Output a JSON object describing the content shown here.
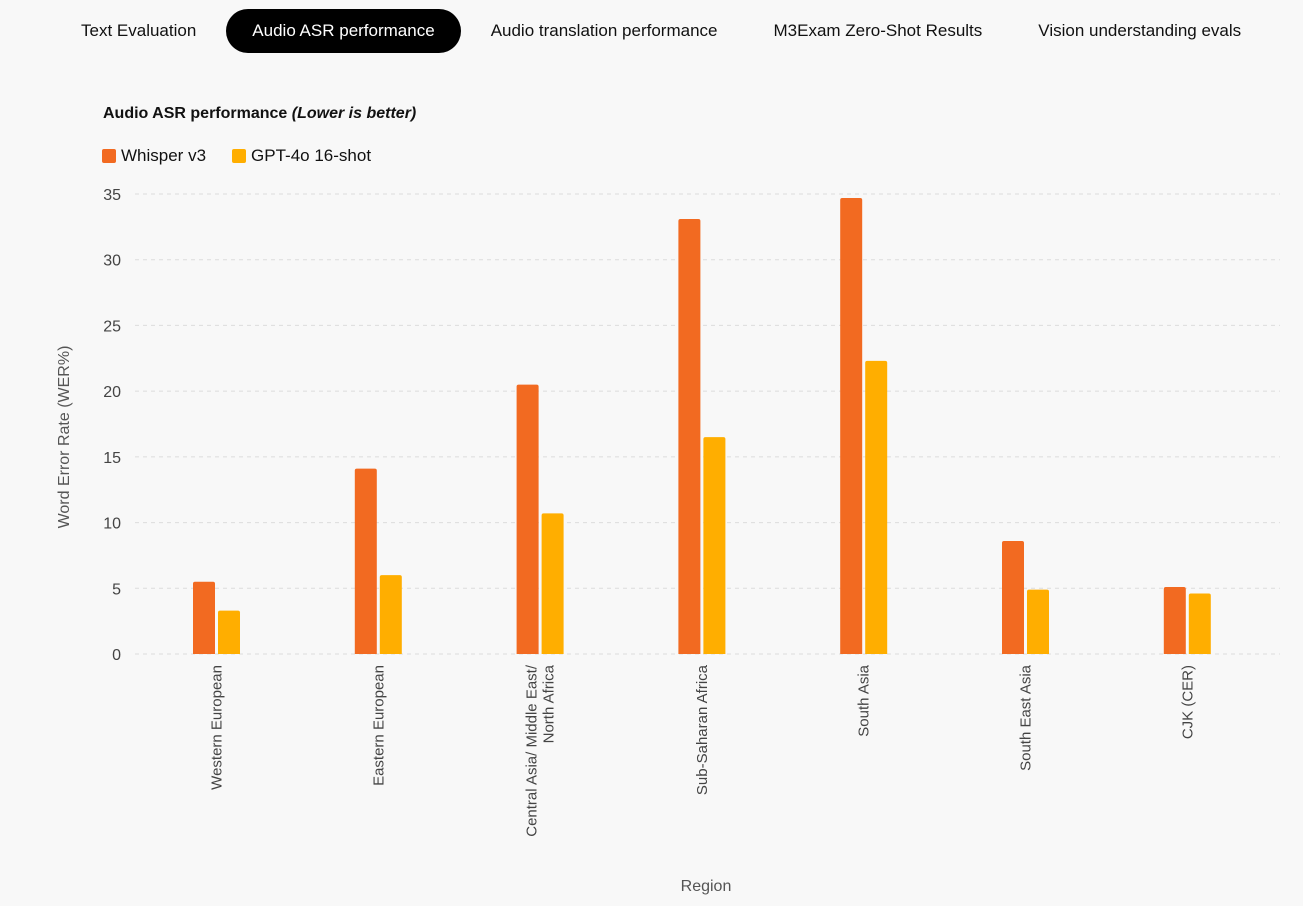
{
  "tabs": [
    {
      "label": "Text Evaluation",
      "active": false
    },
    {
      "label": "Audio ASR performance",
      "active": true
    },
    {
      "label": "Audio translation performance",
      "active": false
    },
    {
      "label": "M3Exam Zero-Shot Results",
      "active": false
    },
    {
      "label": "Vision understanding evals",
      "active": false
    }
  ],
  "chart_data": {
    "type": "bar",
    "title": "Audio ASR performance",
    "subtitle": "(Lower is better)",
    "xlabel": "Region",
    "ylabel": "Word Error Rate (WER%)",
    "ylim": [
      0,
      35
    ],
    "yticks": [
      0,
      5,
      10,
      15,
      20,
      25,
      30,
      35
    ],
    "grid": true,
    "legend_position": "top-left",
    "categories": [
      [
        "Western European"
      ],
      [
        "Eastern European"
      ],
      [
        "Central Asia/ Middle East/",
        "North Africa"
      ],
      [
        "Sub-Saharan Africa"
      ],
      [
        "South Asia"
      ],
      [
        "South East Asia"
      ],
      [
        "CJK (CER)"
      ]
    ],
    "series": [
      {
        "name": "Whisper v3",
        "color": "#f26a21",
        "values": [
          5.5,
          14.1,
          20.5,
          33.1,
          34.7,
          8.6,
          5.1
        ]
      },
      {
        "name": "GPT-4o 16-shot",
        "color": "#ffae00",
        "values": [
          3.3,
          6.0,
          10.7,
          16.5,
          22.3,
          4.9,
          4.6
        ]
      }
    ]
  }
}
